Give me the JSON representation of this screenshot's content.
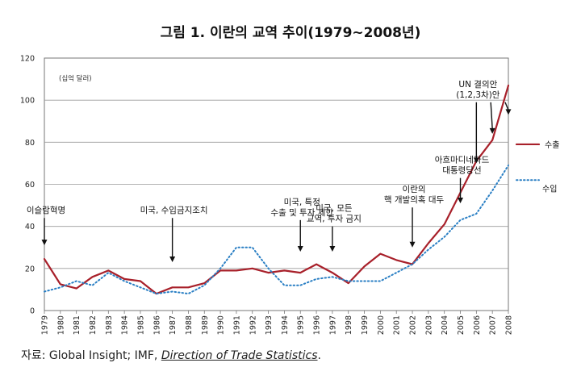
{
  "title": "그림 1. 이란의 교역 추이(1979~2008년)",
  "source": {
    "prefix": "자료: Global Insight; IMF, ",
    "italic": "Direction of Trade Statistics",
    "suffix": "."
  },
  "chart_data": {
    "type": "line",
    "unit_label": "(십억 달러)",
    "x": [
      "1979",
      "1980",
      "1981",
      "1982",
      "1983",
      "1984",
      "1985",
      "1986",
      "1987",
      "1988",
      "1989",
      "1990",
      "1991",
      "1992",
      "1993",
      "1994",
      "1995",
      "1996",
      "1997",
      "1998",
      "1999",
      "2000",
      "2001",
      "2002",
      "2003",
      "2004",
      "2005",
      "2006",
      "2007",
      "2008"
    ],
    "ylim": [
      0,
      120
    ],
    "yticks": [
      0,
      20,
      40,
      60,
      80,
      100,
      120
    ],
    "series": [
      {
        "name": "수출",
        "color": "#a8202a",
        "style": "solid",
        "values": [
          24.5,
          12.5,
          10.5,
          16,
          19,
          15,
          14,
          8,
          11,
          11,
          13,
          19,
          19,
          20,
          18,
          19,
          18,
          22,
          18,
          13,
          21,
          27,
          24,
          22,
          32,
          41,
          56,
          71,
          81,
          107
        ]
      },
      {
        "name": "수입",
        "color": "#2a7fc4",
        "style": "dotted",
        "values": [
          9,
          11,
          14,
          12,
          18,
          14,
          11,
          8,
          9,
          8,
          12,
          20,
          30,
          30,
          20,
          12,
          12,
          15,
          16,
          14,
          14,
          14,
          18,
          22,
          29,
          35,
          43,
          46,
          57,
          69
        ]
      }
    ],
    "annotations": [
      {
        "text": [
          "이슬람혁명"
        ],
        "x": "1979",
        "arrow_from": 44,
        "arrow_to": 31
      },
      {
        "text": [
          "미국, 수입금지조치"
        ],
        "x": "1987",
        "arrow_from": 44,
        "arrow_to": 23
      },
      {
        "text": [
          "미국, 특정",
          "수출 및 투자 제한"
        ],
        "x": "1995",
        "arrow_from": 43,
        "arrow_to": 28
      },
      {
        "text": [
          "미국, 모든",
          "교역, 투자 금지"
        ],
        "x": "1997",
        "arrow_from": 40,
        "arrow_to": 28
      },
      {
        "text": [
          "이란의",
          "핵 개발의혹 대두"
        ],
        "x": "2002",
        "arrow_from": 49,
        "arrow_to": 30
      },
      {
        "text": [
          "아흐마디네자드",
          "대통령당선"
        ],
        "x": "2005",
        "arrow_from": 63,
        "arrow_to": 51
      },
      {
        "text": [
          "UN 결의안",
          "(1,2,3차)안"
        ],
        "x": "2006",
        "arrow_from": 99,
        "arrow_to": 70
      }
    ]
  }
}
